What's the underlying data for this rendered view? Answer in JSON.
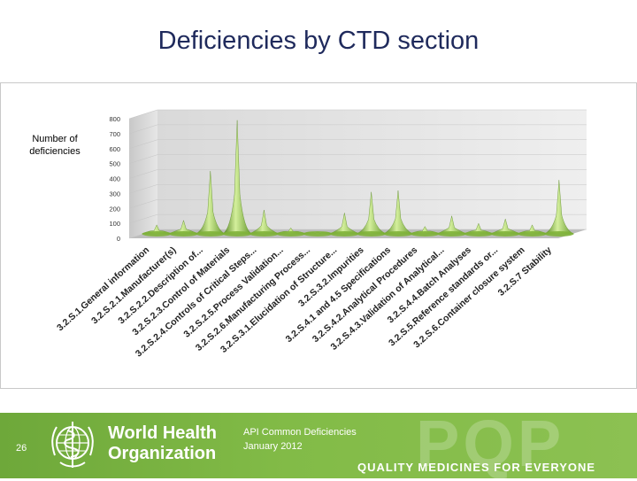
{
  "slide": {
    "title": "Deficiencies by CTD section",
    "number": "26"
  },
  "footer": {
    "org_line1": "World Health",
    "org_line2": "Organization",
    "caption_line1": "API Common Deficiencies",
    "caption_line2": "January 2012",
    "watermark": "PQP",
    "tagline": "QUALITY MEDICINES FOR EVERYONE"
  },
  "chart_data": {
    "type": "area",
    "title": "",
    "ylabel": "Number of deficiencies",
    "xlabel": "",
    "ylim": [
      0,
      800
    ],
    "yticks": [
      0,
      100,
      200,
      300,
      400,
      500,
      600,
      700,
      800
    ],
    "grid": true,
    "legend": "none",
    "colors": {
      "peak": "#7fb23a",
      "peak_highlight": "#d4ef9c",
      "wall": "#e8e8e8",
      "floor": "#bdbdbd"
    },
    "categories": [
      "3.2.S.1.General information",
      "3.2.S.2.1.Manufacturer(s)",
      "3.2.S.2.2.Description of...",
      "3.2.S.2.3.Control of Materials",
      "3.2.S.2.4.Controls of Critical Steps...",
      "3.2.S.2.5.Process Validation...",
      "3.2.S.2.6.Manufacturing Process...",
      "3.2.S.3.1.Elucidation of Structure...",
      "3.2.S.3.2.Impurities",
      "3.2.S.4.1 and 4.5 Specifications",
      "3.2.S.4.2.Analytical Procedures",
      "3.2.S.4.3.Validation of Analytical...",
      "3.2.S.4.4.Batch Analyses",
      "3.2.S.5.Reference standards or...",
      "3.2.S.6.Container closure system",
      "3.2.S.7 Stability"
    ],
    "values": [
      60,
      90,
      420,
      760,
      160,
      40,
      10,
      140,
      280,
      290,
      50,
      120,
      70,
      100,
      60,
      360
    ]
  }
}
